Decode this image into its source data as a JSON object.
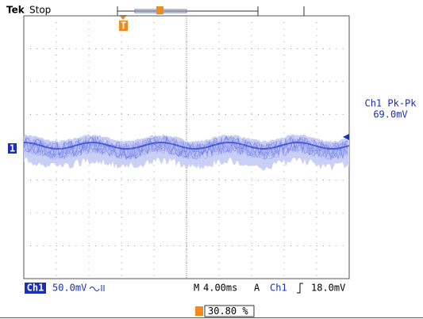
{
  "header": {
    "brand": "Tek",
    "status": "Stop"
  },
  "markers": {
    "trigger": "T",
    "channel": "1"
  },
  "measurement": {
    "label": "Ch1 Pk-Pk",
    "value": "69.0mV"
  },
  "status_bar": {
    "channel": "Ch1",
    "scale": "50.0mV",
    "time_prefix": "M",
    "timebase": "4.00ms",
    "mode": "A",
    "trigger_source": "Ch1",
    "trigger_level": "18.0mV"
  },
  "trigger_position": "30.80 %"
}
